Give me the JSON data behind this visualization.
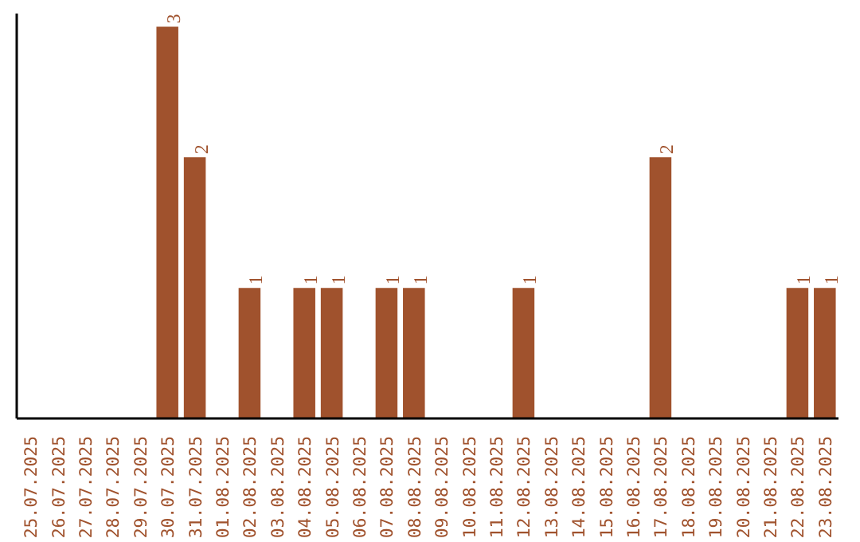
{
  "chart_data": {
    "type": "bar",
    "categories": [
      "25.07.2025",
      "26.07.2025",
      "27.07.2025",
      "28.07.2025",
      "29.07.2025",
      "30.07.2025",
      "31.07.2025",
      "01.08.2025",
      "02.08.2025",
      "03.08.2025",
      "04.08.2025",
      "05.08.2025",
      "06.08.2025",
      "07.08.2025",
      "08.08.2025",
      "09.08.2025",
      "10.08.2025",
      "11.08.2025",
      "12.08.2025",
      "13.08.2025",
      "14.08.2025",
      "15.08.2025",
      "16.08.2025",
      "17.08.2025",
      "18.08.2025",
      "19.08.2025",
      "20.08.2025",
      "21.08.2025",
      "22.08.2025",
      "23.08.2025"
    ],
    "values": [
      0,
      0,
      0,
      0,
      0,
      3,
      2,
      0,
      1,
      0,
      1,
      1,
      0,
      1,
      1,
      0,
      0,
      0,
      1,
      0,
      0,
      0,
      0,
      2,
      0,
      0,
      0,
      0,
      1,
      1
    ],
    "value_labels": [
      null,
      null,
      null,
      null,
      null,
      "3",
      "2",
      null,
      "1",
      null,
      "1",
      "1",
      null,
      "1",
      "1",
      null,
      null,
      null,
      "1",
      null,
      null,
      null,
      null,
      "2",
      null,
      null,
      null,
      null,
      "1",
      "1"
    ],
    "color": "#a0522d",
    "ylim": [
      0,
      3.1
    ],
    "tick_labels": "x",
    "grid": false
  }
}
